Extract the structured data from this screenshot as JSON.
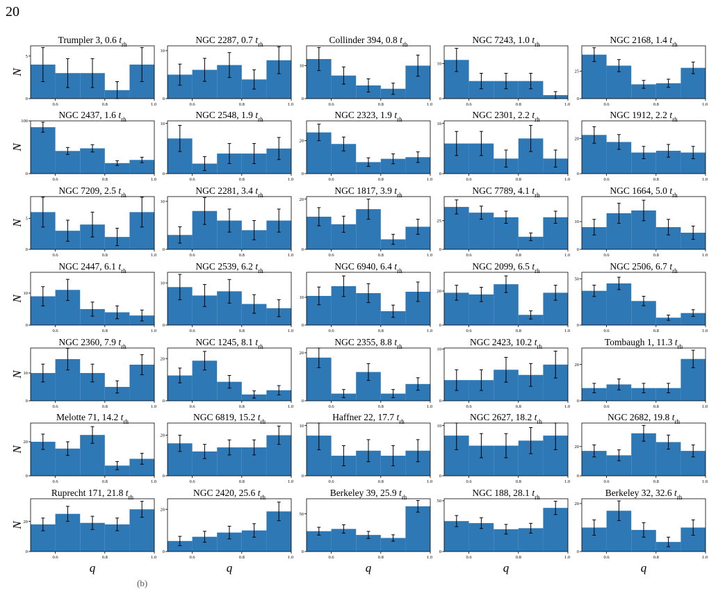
{
  "page": {
    "number": "20",
    "caption_fragment": "(b)"
  },
  "colors": {
    "bar": "#2f78b6",
    "errorbar": "#000000",
    "axis": "#000000"
  },
  "chart_data": {
    "type": "bar",
    "grid": false,
    "x_tick_labels": [
      "0.6",
      "0.8",
      "1.0"
    ],
    "x_ticks": [
      0.6,
      0.8,
      1.0
    ],
    "xlim": [
      0.5,
      1.0
    ],
    "bin_edges": [
      0.5,
      0.6,
      0.7,
      0.8,
      0.9,
      1.0
    ],
    "xlabel": "q",
    "ylabel": "N",
    "time_unit": "rh",
    "panels": [
      {
        "name": "Trumpler 3",
        "age": "0.6",
        "values": [
          4,
          3,
          3,
          1,
          4
        ],
        "err": [
          2,
          1.7,
          1.7,
          1,
          2
        ],
        "ylim": [
          0,
          6.2
        ],
        "yticks": [
          0,
          5
        ]
      },
      {
        "name": "NGC 2287",
        "age": "0.7",
        "values": [
          5,
          6,
          7,
          4,
          8
        ],
        "err": [
          2.2,
          2.4,
          2.6,
          2,
          2.8
        ],
        "ylim": [
          0,
          11
        ],
        "yticks": [
          0,
          10
        ]
      },
      {
        "name": "Collinder 394",
        "age": "0.8",
        "values": [
          12,
          7,
          4,
          3,
          10
        ],
        "err": [
          3.5,
          2.6,
          2,
          1.7,
          3.2
        ],
        "ylim": [
          0,
          16
        ],
        "yticks": [
          0,
          10
        ]
      },
      {
        "name": "NGC 7243",
        "age": "1.0",
        "values": [
          11,
          5,
          5,
          5,
          1
        ],
        "err": [
          3.3,
          2.2,
          2.2,
          2.2,
          1
        ],
        "ylim": [
          0,
          15
        ],
        "yticks": [
          0,
          10
        ]
      },
      {
        "name": "NGC 2168",
        "age": "1.4",
        "values": [
          40,
          30,
          13,
          14,
          28
        ],
        "err": [
          6.3,
          5.5,
          3.6,
          3.7,
          5.3
        ],
        "ylim": [
          0,
          48
        ],
        "yticks": [
          0,
          25
        ]
      },
      {
        "name": "NGC 2437",
        "age": "1.6",
        "values": [
          88,
          43,
          48,
          20,
          26
        ],
        "err": [
          9.4,
          6.6,
          6.9,
          4.5,
          5.1
        ],
        "ylim": [
          0,
          100
        ],
        "yticks": [
          0,
          100
        ]
      },
      {
        "name": "NGC 2548",
        "age": "1.9",
        "values": [
          7,
          2,
          4,
          4,
          5
        ],
        "err": [
          2.6,
          1.4,
          2,
          2,
          2.2
        ],
        "ylim": [
          0,
          10.5
        ],
        "yticks": [
          0,
          10
        ]
      },
      {
        "name": "NGC 2323",
        "age": "1.9",
        "values": [
          25,
          18,
          7,
          9,
          10
        ],
        "err": [
          5,
          4.2,
          2.6,
          3,
          3.2
        ],
        "ylim": [
          0,
          32
        ],
        "yticks": [
          0,
          20
        ]
      },
      {
        "name": "NGC 2301",
        "age": "2.2",
        "values": [
          6,
          6,
          3,
          7,
          3
        ],
        "err": [
          2.4,
          2.4,
          1.7,
          2.6,
          1.7
        ],
        "ylim": [
          0,
          10.5
        ],
        "yticks": [
          0,
          10
        ]
      },
      {
        "name": "NGC 1912",
        "age": "2.2",
        "values": [
          22,
          18,
          12,
          13,
          12
        ],
        "err": [
          4.7,
          4.2,
          3.5,
          3.6,
          3.5
        ],
        "ylim": [
          0,
          30
        ],
        "yticks": [
          0,
          20
        ]
      },
      {
        "name": "NGC 7209",
        "age": "2.5",
        "values": [
          6,
          3,
          4,
          2,
          6
        ],
        "err": [
          2.4,
          1.7,
          2,
          1.4,
          2.4
        ],
        "ylim": [
          0,
          8.5
        ],
        "yticks": [
          0,
          5
        ]
      },
      {
        "name": "NGC 2281",
        "age": "3.4",
        "values": [
          3,
          8,
          6,
          4,
          6
        ],
        "err": [
          1.7,
          2.8,
          2.4,
          2,
          2.4
        ],
        "ylim": [
          0,
          11
        ],
        "yticks": [
          0,
          10
        ]
      },
      {
        "name": "NGC 1817",
        "age": "3.9",
        "values": [
          13,
          10,
          16,
          4,
          9
        ],
        "err": [
          3.6,
          3.2,
          4,
          2,
          3
        ],
        "ylim": [
          0,
          21
        ],
        "yticks": [
          0,
          20
        ]
      },
      {
        "name": "NGC 7789",
        "age": "4.1",
        "values": [
          37,
          32,
          28,
          11,
          28
        ],
        "err": [
          6.1,
          5.7,
          5.3,
          3.3,
          5.3
        ],
        "ylim": [
          0,
          46
        ],
        "yticks": [
          0,
          25
        ]
      },
      {
        "name": "NGC 1664",
        "age": "5.0",
        "values": [
          8,
          13,
          14,
          8,
          6
        ],
        "err": [
          2.8,
          3.6,
          3.7,
          2.8,
          2.4
        ],
        "ylim": [
          0,
          19
        ],
        "yticks": [
          0,
          10
        ]
      },
      {
        "name": "NGC 2447",
        "age": "6.1",
        "values": [
          9,
          11,
          5,
          4,
          3
        ],
        "err": [
          3,
          3.3,
          2.2,
          2,
          1.7
        ],
        "ylim": [
          0,
          16.5
        ],
        "yticks": [
          0,
          10
        ]
      },
      {
        "name": "NGC 2539",
        "age": "6.2",
        "values": [
          9,
          7,
          8,
          5,
          4
        ],
        "err": [
          3,
          2.6,
          2.8,
          2.2,
          2
        ],
        "ylim": [
          0,
          12.5
        ],
        "yticks": [
          0,
          10
        ]
      },
      {
        "name": "NGC 6940",
        "age": "6.4",
        "values": [
          10.5,
          14,
          11.5,
          5,
          12
        ],
        "err": [
          3.2,
          3.7,
          3.4,
          2.2,
          3.5
        ],
        "ylim": [
          0,
          19
        ],
        "yticks": [
          0,
          10
        ]
      },
      {
        "name": "NGC 2099",
        "age": "6.5",
        "values": [
          19,
          18,
          24,
          6,
          19
        ],
        "err": [
          4.4,
          4.2,
          4.9,
          2.4,
          4.4
        ],
        "ylim": [
          0,
          31
        ],
        "yticks": [
          0,
          20
        ]
      },
      {
        "name": "NGC 2506",
        "age": "6.7",
        "values": [
          37,
          45,
          26,
          8,
          13
        ],
        "err": [
          6.1,
          6.7,
          5.1,
          2.8,
          3.6
        ],
        "ylim": [
          0,
          57
        ],
        "yticks": [
          0,
          50
        ]
      },
      {
        "name": "NGC 2360",
        "age": "7.9",
        "values": [
          10,
          15,
          10,
          5,
          13
        ],
        "err": [
          3.2,
          3.9,
          3.2,
          2.2,
          3.6
        ],
        "ylim": [
          0,
          19
        ],
        "yticks": [
          0,
          10
        ]
      },
      {
        "name": "NGC 1245",
        "age": "8.1",
        "values": [
          12,
          19,
          9,
          3,
          5
        ],
        "err": [
          3.5,
          4.4,
          3,
          1.7,
          2.2
        ],
        "ylim": [
          0,
          25
        ],
        "yticks": [
          0,
          20
        ]
      },
      {
        "name": "NGC 2355",
        "age": "8.8",
        "values": [
          18,
          3,
          12,
          3,
          7
        ],
        "err": [
          4.2,
          1.7,
          3.5,
          1.7,
          2.6
        ],
        "ylim": [
          0,
          22
        ],
        "yticks": [
          0,
          20
        ]
      },
      {
        "name": "NGC 2423",
        "age": "10.2",
        "values": [
          4,
          4,
          6,
          5,
          7
        ],
        "err": [
          2,
          2,
          2.4,
          2.2,
          2.6
        ],
        "ylim": [
          0,
          10.2
        ],
        "yticks": [
          0,
          10
        ]
      },
      {
        "name": "Tombaugh 1",
        "age": "11.3",
        "values": [
          7,
          9,
          7,
          7,
          23
        ],
        "err": [
          2.6,
          3,
          2.6,
          2.6,
          4.8
        ],
        "ylim": [
          0,
          29
        ],
        "yticks": [
          0,
          20
        ]
      },
      {
        "name": "Melotte 71",
        "age": "14.2",
        "values": [
          20,
          16,
          24,
          6,
          10
        ],
        "err": [
          4.5,
          4,
          4.9,
          2.4,
          3.2
        ],
        "ylim": [
          0,
          31
        ],
        "yticks": [
          0,
          20
        ]
      },
      {
        "name": "NGC 6819",
        "age": "15.2",
        "values": [
          16,
          12,
          14,
          14,
          20
        ],
        "err": [
          4,
          3.5,
          3.7,
          3.7,
          4.5
        ],
        "ylim": [
          0,
          26
        ],
        "yticks": [
          0,
          20
        ]
      },
      {
        "name": "Haffner 22",
        "age": "17.7",
        "values": [
          8,
          4,
          5,
          4,
          5
        ],
        "err": [
          2.8,
          2,
          2.2,
          2,
          2.2
        ],
        "ylim": [
          0,
          10.5
        ],
        "yticks": [
          0,
          10
        ]
      },
      {
        "name": "NGC 2627",
        "age": "18.2",
        "values": [
          8,
          6,
          6,
          7,
          8
        ],
        "err": [
          2.8,
          2.4,
          2.4,
          2.6,
          2.8
        ],
        "ylim": [
          0,
          10.5
        ],
        "yticks": [
          0,
          10
        ]
      },
      {
        "name": "NGC 2682",
        "age": "19.8",
        "values": [
          17,
          14,
          29,
          23,
          17
        ],
        "err": [
          4.1,
          3.7,
          5.4,
          4.8,
          4.1
        ],
        "ylim": [
          0,
          36
        ],
        "yticks": [
          0,
          20
        ]
      },
      {
        "name": "Ruprecht 171",
        "age": "21.8",
        "values": [
          18,
          25,
          19,
          18,
          28
        ],
        "err": [
          4.2,
          5,
          4.4,
          4.2,
          5.3
        ],
        "ylim": [
          0,
          35
        ],
        "yticks": [
          0,
          20
        ]
      },
      {
        "name": "NGC 2420",
        "age": "25.6",
        "values": [
          5,
          7,
          9,
          10,
          19
        ],
        "err": [
          2.2,
          2.6,
          3,
          3.2,
          4.4
        ],
        "ylim": [
          0,
          25
        ],
        "yticks": [
          0,
          20
        ]
      },
      {
        "name": "Berkeley 39",
        "age": "25.9",
        "values": [
          27,
          30,
          22,
          18,
          60
        ],
        "err": [
          5.2,
          5.5,
          4.7,
          4.2,
          7.7
        ],
        "ylim": [
          0,
          70
        ],
        "yticks": [
          0,
          50
        ]
      },
      {
        "name": "NGC 188",
        "age": "28.1",
        "values": [
          30,
          28,
          22,
          23,
          43
        ],
        "err": [
          5.5,
          5.3,
          4.7,
          4.8,
          6.6
        ],
        "ylim": [
          0,
          52
        ],
        "yticks": [
          0,
          50
        ]
      },
      {
        "name": "Berkeley 32",
        "age": "32.6",
        "values": [
          10,
          17,
          9,
          4,
          10
        ],
        "err": [
          3.2,
          4.1,
          3,
          2,
          3.2
        ],
        "ylim": [
          0,
          22
        ],
        "yticks": [
          0,
          20
        ]
      }
    ]
  }
}
